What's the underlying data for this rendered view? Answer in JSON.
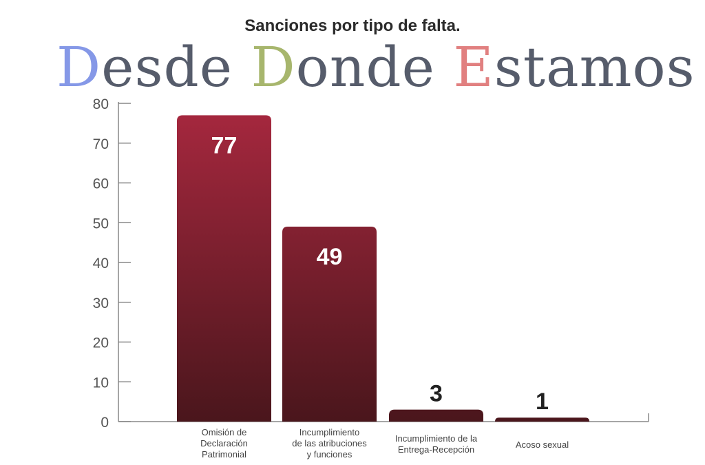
{
  "chart_data": {
    "type": "bar",
    "title": "Sanciones por tipo de falta.",
    "categories": [
      [
        "Omisión de",
        "Declaración",
        "Patrimonial"
      ],
      [
        "Incumplimiento",
        "de las atribuciones",
        "y funciones"
      ],
      [
        "Incumplimiento de la",
        "Entrega-Recepción"
      ],
      [
        "Acoso sexual"
      ]
    ],
    "values": [
      77,
      49,
      3,
      1
    ],
    "ylim": [
      0,
      80
    ],
    "yticks": [
      0,
      10,
      20,
      30,
      40,
      50,
      60,
      70,
      80
    ],
    "grid": false,
    "bar_color_top": "#a8283f",
    "bar_color_bottom": "#4a161c"
  },
  "watermark": {
    "parts": [
      {
        "text": "D",
        "color": "#7f93e6"
      },
      {
        "text": "esde ",
        "color": "#4d5464"
      },
      {
        "text": "D",
        "color": "#a3b366"
      },
      {
        "text": "onde ",
        "color": "#4d5464"
      },
      {
        "text": "E",
        "color": "#e07a7a"
      },
      {
        "text": "stamos",
        "color": "#4d5464"
      }
    ]
  }
}
